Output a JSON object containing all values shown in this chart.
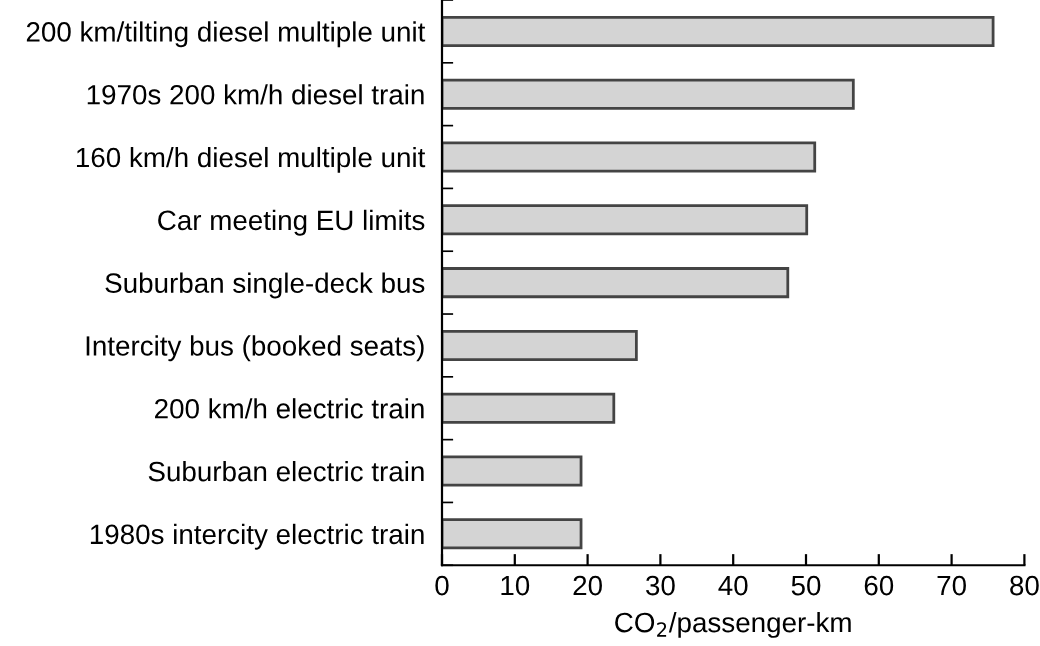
{
  "chart_data": {
    "type": "bar",
    "orientation": "horizontal",
    "xlabel": "CO$_{2}$/passenger-km",
    "categories": [
      "200 km/tilting diesel multiple unit",
      "1970s 200 km/h diesel train",
      "160 km/h diesel multiple unit",
      "Car meeting EU limits",
      "Suburban single-deck bus",
      "Intercity bus (booked seats)",
      "200 km/h electric train",
      "Suburban electric train",
      "1980s intercity electric train"
    ],
    "values": [
      75.7,
      56.5,
      51.2,
      50.1,
      47.5,
      26.7,
      23.6,
      19.1,
      19.1
    ],
    "color": "#d4d4d4",
    "xlim": [
      0,
      80
    ],
    "xticks": [
      0,
      10,
      20,
      30,
      40,
      50,
      60,
      70,
      80
    ],
    "grid": false,
    "legend": false
  }
}
